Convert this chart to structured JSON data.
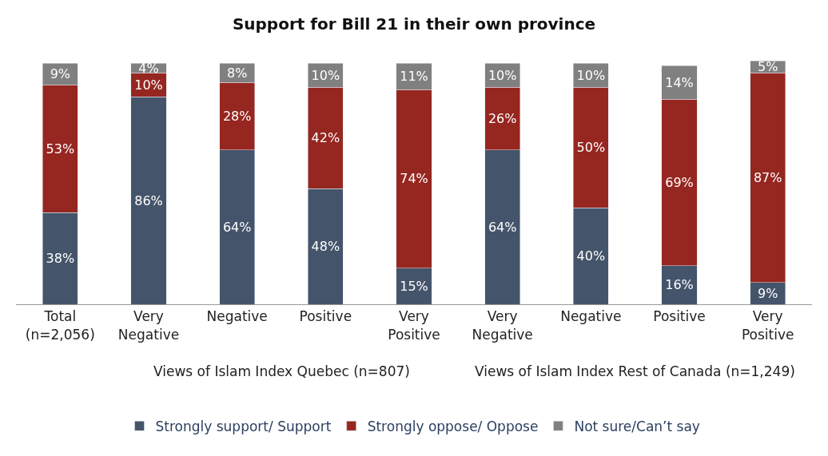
{
  "chart_data": {
    "type": "bar",
    "title": "Support for Bill 21 in their own province",
    "stacked": true,
    "legend": "bottom",
    "categories": [
      "Total (n=2,056)",
      "Very Negative",
      "Negative",
      "Positive",
      "Very Positive",
      "Very Negative",
      "Negative",
      "Positive",
      "Very Positive"
    ],
    "series": [
      {
        "name": "Strongly support/ Support",
        "color": "#44546a",
        "values": [
          38,
          86,
          64,
          48,
          15,
          64,
          40,
          16,
          9
        ],
        "value_labels": [
          "38%",
          "86%",
          "64%",
          "48%",
          "15%",
          "64%",
          "40%",
          "16%",
          "9%"
        ]
      },
      {
        "name": "Strongly oppose/ Oppose",
        "color": "#962620",
        "values": [
          53,
          10,
          28,
          42,
          74,
          26,
          50,
          69,
          87
        ],
        "value_labels": [
          "53%",
          "10%",
          "28%",
          "42%",
          "74%",
          "26%",
          "50%",
          "69%",
          "87%"
        ]
      },
      {
        "name": "Not sure/Can’t say",
        "color": "#808080",
        "values": [
          9,
          4,
          8,
          10,
          11,
          10,
          10,
          14,
          5
        ],
        "value_labels": [
          "9%",
          "4%",
          "8%",
          "10%",
          "11%",
          "10%",
          "10%",
          "14%",
          "5%"
        ]
      }
    ],
    "annotations": [
      "Views of Islam Index Quebec (n=807)",
      "Views of Islam Index Rest of Canada (n=1,249)"
    ]
  }
}
